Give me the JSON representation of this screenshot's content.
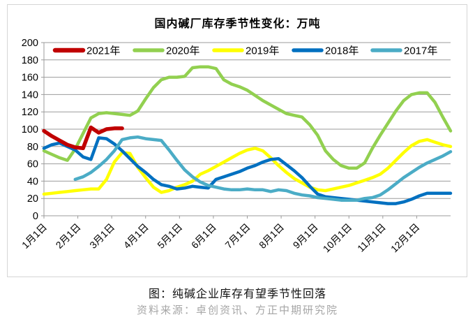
{
  "caption": "图：纯碱企业库存有望季节性回落",
  "source": "资料来源：卓创资讯、方正中期研究院",
  "chart_data": {
    "type": "line",
    "title": "国内碱厂库存季节性变化：万吨",
    "unit": "万吨",
    "ylim": [
      0,
      200
    ],
    "y_ticks": [
      0,
      20,
      40,
      60,
      80,
      100,
      120,
      140,
      160,
      180,
      200
    ],
    "x_tick_labels": [
      "1月1日",
      "2月1日",
      "3月1日",
      "4月1日",
      "5月1日",
      "6月1日",
      "7月1日",
      "8月1日",
      "9月1日",
      "10月1日",
      "11月1日",
      "12月1日"
    ],
    "grid": "horizontal",
    "legend_position": "top-inside",
    "x_unit": "week-of-year (52 weeks)",
    "axis_color": "#9b9b9b",
    "series": [
      {
        "name": "2021年",
        "color": "#C00000",
        "start_week": 0,
        "values": [
          98,
          92,
          87,
          82,
          79,
          78,
          102,
          96,
          100,
          101,
          101
        ]
      },
      {
        "name": "2020年",
        "color": "#92D050",
        "start_week": 0,
        "values": [
          75,
          71,
          67,
          64,
          77,
          95,
          113,
          118,
          119,
          118,
          117,
          116,
          121,
          135,
          148,
          157,
          160,
          160,
          161,
          171,
          172,
          172,
          170,
          157,
          152,
          149,
          145,
          139,
          133,
          128,
          123,
          118,
          116,
          114,
          105,
          93,
          75,
          65,
          58,
          55,
          55,
          61,
          78,
          93,
          107,
          121,
          133,
          140,
          142,
          142,
          131,
          114,
          98
        ]
      },
      {
        "name": "2019年",
        "color": "#FFFF00",
        "start_week": 0,
        "values": [
          25,
          26,
          27,
          28,
          29,
          30,
          31,
          31,
          42,
          62,
          73,
          72,
          56,
          44,
          33,
          27,
          29,
          33,
          36,
          40,
          48,
          52,
          57,
          62,
          67,
          72,
          76,
          78,
          75,
          67,
          58,
          50,
          43,
          38,
          33,
          30,
          29,
          31,
          33,
          35,
          38,
          41,
          44,
          48,
          55,
          64,
          73,
          81,
          86,
          88,
          85,
          82,
          80
        ]
      },
      {
        "name": "2018年",
        "color": "#0070C0",
        "start_week": 0,
        "values": [
          78,
          82,
          84,
          80,
          76,
          68,
          65,
          90,
          89,
          83,
          75,
          66,
          57,
          50,
          42,
          36,
          34,
          31,
          32,
          34,
          33,
          32,
          42,
          45,
          48,
          51,
          55,
          58,
          62,
          65,
          66,
          59,
          52,
          44,
          34,
          25,
          22,
          21,
          20,
          19,
          18,
          17,
          16,
          15,
          14,
          14,
          16,
          19,
          23,
          26,
          26,
          26,
          26
        ]
      },
      {
        "name": "2017年",
        "color": "#4BACC6",
        "start_week": 4,
        "values": [
          42,
          45,
          50,
          57,
          65,
          75,
          88,
          90,
          91,
          89,
          88,
          87,
          76,
          64,
          53,
          45,
          39,
          35,
          33,
          31,
          30,
          30,
          31,
          30,
          30,
          28,
          30,
          29,
          26,
          24,
          23,
          21,
          20,
          19,
          18,
          18,
          18,
          20,
          21,
          24,
          30,
          37,
          44,
          50,
          56,
          61,
          65,
          69,
          74
        ]
      }
    ]
  }
}
